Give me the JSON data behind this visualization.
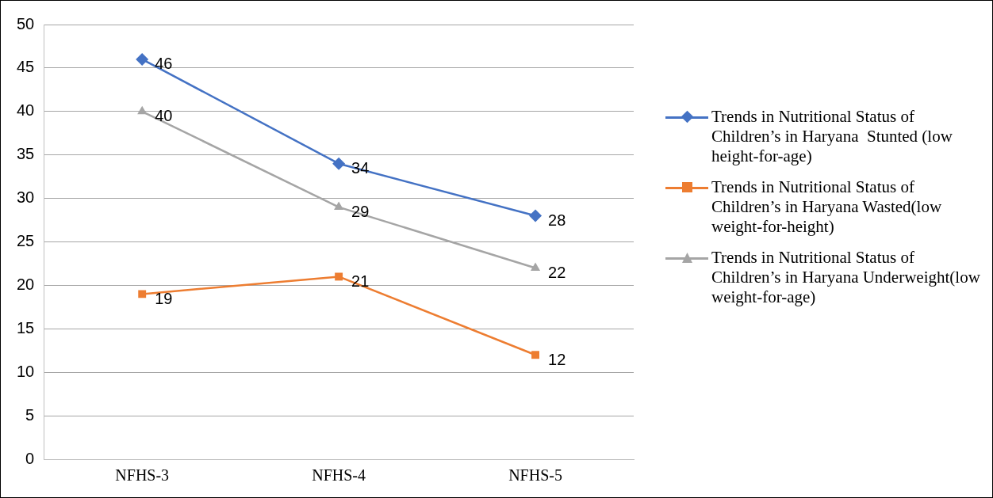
{
  "chart_data": {
    "type": "line",
    "categories": [
      "NFHS-3",
      "NFHS-4",
      "NFHS-5"
    ],
    "series": [
      {
        "name": "Trends in Nutritional Status of Children’s in Haryana  Stunted (low height-for-age)",
        "color": "#4472c4",
        "values": [
          46,
          34,
          28
        ],
        "marker": "diamond"
      },
      {
        "name": "Trends in Nutritional Status of Children’s in Haryana Wasted(low weight-for-height)",
        "color": "#ed7d31",
        "values": [
          19,
          21,
          12
        ],
        "marker": "square"
      },
      {
        "name": "Trends in Nutritional Status of Children’s in Haryana Underweight(low weight-for-age)",
        "color": "#a5a5a5",
        "values": [
          40,
          29,
          22
        ],
        "marker": "triangle"
      }
    ],
    "ylim": [
      0,
      50
    ],
    "yticks": [
      0,
      5,
      10,
      15,
      20,
      25,
      30,
      35,
      40,
      45,
      50
    ],
    "grid": "y",
    "legend": "right",
    "data_labels": true,
    "line_style": "solid"
  }
}
